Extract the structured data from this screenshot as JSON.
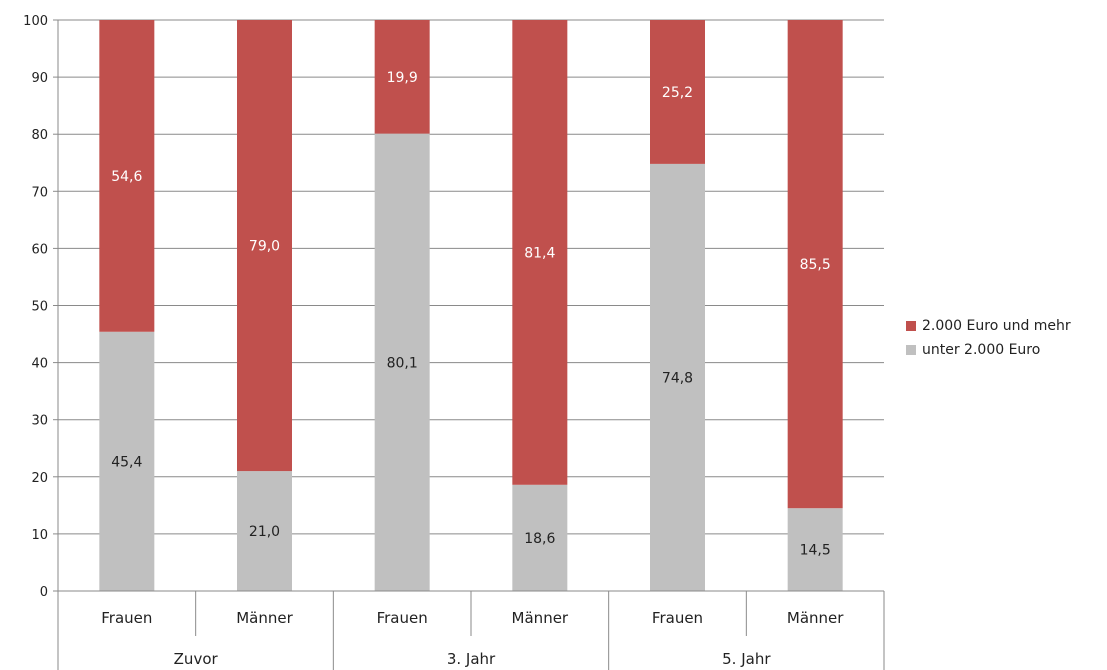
{
  "chart_data": {
    "type": "bar",
    "stacked": true,
    "groups": [
      {
        "label": "Zuvor",
        "categories": [
          "Frauen",
          "Männer"
        ]
      },
      {
        "label": "3. Jahr",
        "categories": [
          "Frauen",
          "Männer"
        ]
      },
      {
        "label": "5. Jahr",
        "categories": [
          "Frauen",
          "Männer"
        ]
      }
    ],
    "categories": [
      "Frauen",
      "Männer",
      "Frauen",
      "Männer",
      "Frauen",
      "Männer"
    ],
    "series": [
      {
        "name": "unter 2.000 Euro",
        "values": [
          45.4,
          21.0,
          80.1,
          18.6,
          74.8,
          14.5
        ],
        "labels": [
          "45,4",
          "21,0",
          "80,1",
          "18,6",
          "74,8",
          "14,5"
        ],
        "color": "#c0c0c0"
      },
      {
        "name": "2.000 Euro und mehr",
        "values": [
          54.6,
          79.0,
          19.9,
          81.4,
          25.2,
          85.5
        ],
        "labels": [
          "54,6",
          "79,0",
          "19,9",
          "81,4",
          "25,2",
          "85,5"
        ],
        "color": "#c0504d"
      }
    ],
    "ylim": [
      0,
      100
    ],
    "yticks": [
      0,
      10,
      20,
      30,
      40,
      50,
      60,
      70,
      80,
      90,
      100
    ],
    "grid": true,
    "legend": "right",
    "title": "",
    "xlabel": "",
    "ylabel": ""
  }
}
